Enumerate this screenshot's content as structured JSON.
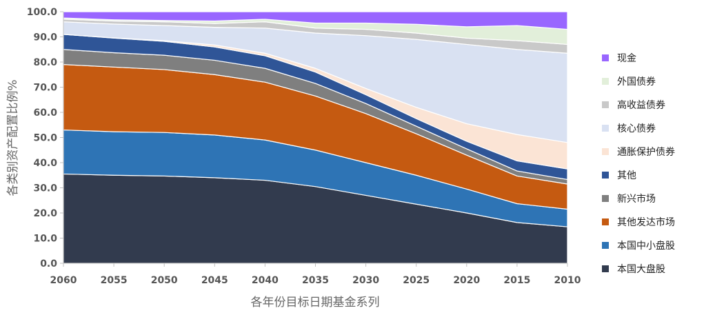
{
  "chart_data": {
    "type": "area",
    "stacked": true,
    "x": [
      "2060",
      "2055",
      "2050",
      "2045",
      "2040",
      "2035",
      "2030",
      "2025",
      "2020",
      "2015",
      "2010"
    ],
    "xlabel": "各年份目标日期基金系列",
    "ylabel": "各类别资产配置比例%",
    "ylim": [
      0,
      100
    ],
    "yticks": [
      "0.0",
      "10.0",
      "20.0",
      "30.0",
      "40.0",
      "50.0",
      "60.0",
      "70.0",
      "80.0",
      "90.0",
      "100.0"
    ],
    "grid": false,
    "legend_position": "right",
    "series": [
      {
        "name": "本国大盘股",
        "color": "#323b4e",
        "values": [
          35.5,
          35.0,
          34.7,
          34.0,
          33.0,
          30.5,
          27.0,
          23.5,
          20.0,
          16.2,
          14.5
        ]
      },
      {
        "name": "本国中小盘股",
        "color": "#2e74b5",
        "values": [
          17.5,
          17.3,
          17.3,
          17.0,
          16.0,
          14.5,
          13.0,
          11.5,
          9.5,
          7.5,
          7.0
        ]
      },
      {
        "name": "其他发达市场",
        "color": "#c55a11",
        "values": [
          26.0,
          25.7,
          25.0,
          24.0,
          23.0,
          21.5,
          19.5,
          16.5,
          13.5,
          11.0,
          10.0
        ]
      },
      {
        "name": "新兴市场",
        "color": "#7f7f7f",
        "values": [
          6.0,
          5.7,
          5.7,
          5.7,
          5.5,
          5.0,
          4.0,
          3.0,
          2.5,
          2.0,
          1.8
        ]
      },
      {
        "name": "其他",
        "color": "#2f5597",
        "values": [
          6.0,
          5.8,
          5.5,
          5.3,
          5.0,
          4.5,
          3.5,
          3.0,
          3.0,
          4.0,
          4.2
        ]
      },
      {
        "name": "通胀保护债券",
        "color": "#fbe4d5",
        "values": [
          0.0,
          0.1,
          0.3,
          0.8,
          1.0,
          1.5,
          2.5,
          4.5,
          7.0,
          10.5,
          10.5
        ]
      },
      {
        "name": "核心债券",
        "color": "#d9e1f2",
        "values": [
          5.0,
          5.5,
          6.0,
          7.0,
          10.0,
          14.0,
          21.0,
          27.0,
          31.5,
          33.8,
          35.5
        ]
      },
      {
        "name": "高收益债券",
        "color": "#c9c9c9",
        "values": [
          1.0,
          1.2,
          1.5,
          1.5,
          2.5,
          2.0,
          2.5,
          2.5,
          2.5,
          3.5,
          3.5
        ]
      },
      {
        "name": "外国债券",
        "color": "#e2efda",
        "values": [
          0.5,
          0.5,
          0.5,
          1.0,
          1.0,
          2.0,
          2.5,
          3.5,
          4.5,
          6.0,
          6.0
        ]
      },
      {
        "name": "现金",
        "color": "#9966ff",
        "values": [
          2.5,
          3.2,
          3.5,
          3.7,
          3.0,
          4.5,
          4.5,
          5.0,
          6.0,
          5.5,
          7.0
        ]
      }
    ]
  }
}
